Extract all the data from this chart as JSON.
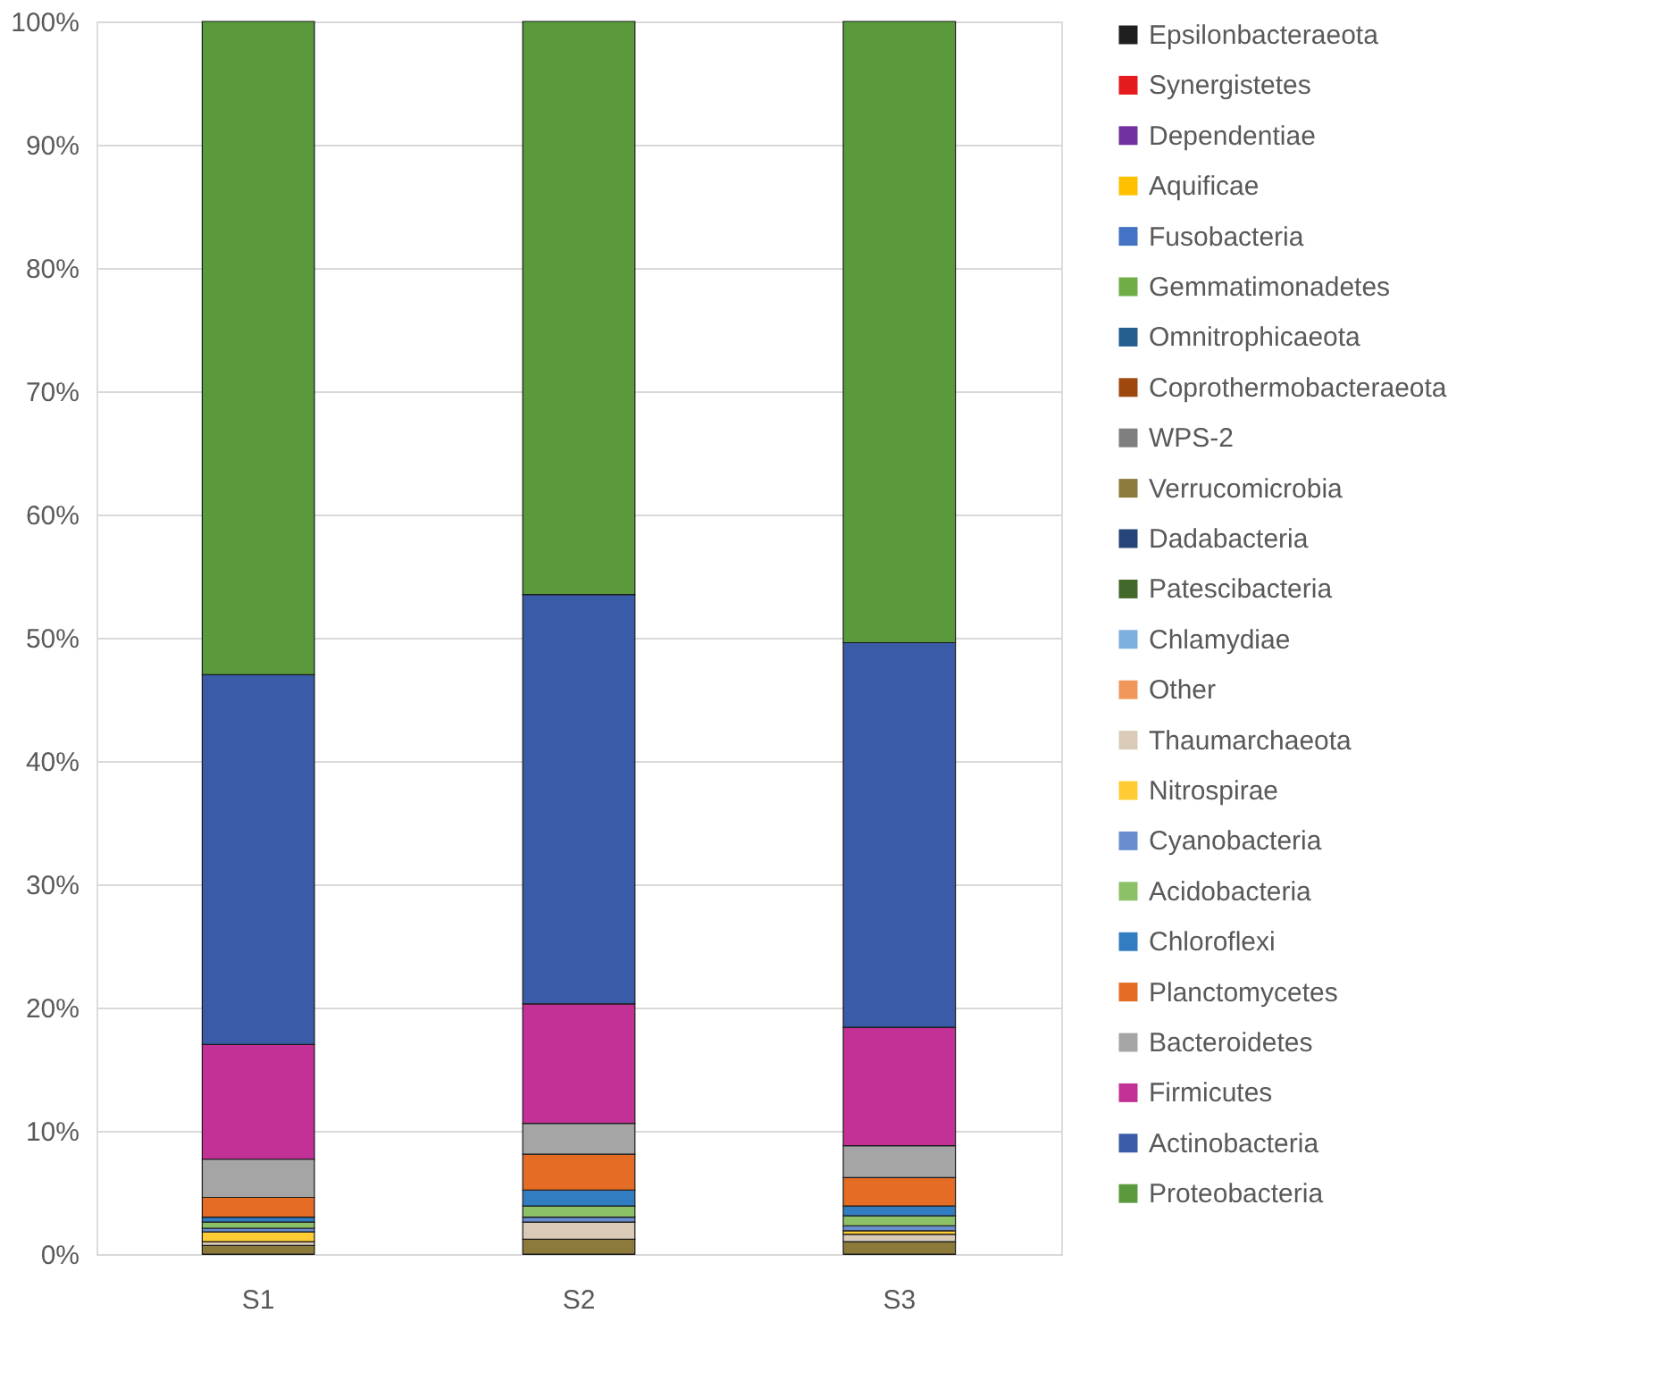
{
  "chart_data": {
    "type": "bar",
    "stacked": true,
    "categories": [
      "S1",
      "S2",
      "S3"
    ],
    "ylim": [
      0,
      100
    ],
    "yticks": [
      {
        "value": 0,
        "label": "0%"
      },
      {
        "value": 10,
        "label": "10%"
      },
      {
        "value": 20,
        "label": "20%"
      },
      {
        "value": 30,
        "label": "30%"
      },
      {
        "value": 40,
        "label": "40%"
      },
      {
        "value": 50,
        "label": "50%"
      },
      {
        "value": 60,
        "label": "60%"
      },
      {
        "value": 70,
        "label": "70%"
      },
      {
        "value": 80,
        "label": "80%"
      },
      {
        "value": 90,
        "label": "90%"
      },
      {
        "value": 100,
        "label": "100%"
      }
    ],
    "grid": "y",
    "legend": "right",
    "series": [
      {
        "name": "Epsilonbacteraeota",
        "color": "#1f1f1f",
        "values": [
          0,
          0,
          0
        ]
      },
      {
        "name": "Synergistetes",
        "color": "#e41a1c",
        "values": [
          0,
          0,
          0
        ]
      },
      {
        "name": "Dependentiae",
        "color": "#7030a0",
        "values": [
          0,
          0,
          0
        ]
      },
      {
        "name": "Aquificae",
        "color": "#ffc000",
        "values": [
          0,
          0,
          0
        ]
      },
      {
        "name": "Fusobacteria",
        "color": "#4472c4",
        "values": [
          0,
          0,
          0
        ]
      },
      {
        "name": "Gemmatimonadetes",
        "color": "#70ad47",
        "values": [
          0,
          0,
          0
        ]
      },
      {
        "name": "Omnitrophicaeota",
        "color": "#255e91",
        "values": [
          0,
          0,
          0
        ]
      },
      {
        "name": "Coprothermobacteraeota",
        "color": "#9e480e",
        "values": [
          0,
          0,
          0
        ]
      },
      {
        "name": "WPS-2",
        "color": "#7f7f7f",
        "values": [
          0,
          0,
          0
        ]
      },
      {
        "name": "Verrucomicrobia",
        "color": "#8c7a3a",
        "values": [
          0.7,
          1.2,
          1.0
        ]
      },
      {
        "name": "Dadabacteria",
        "color": "#264478",
        "values": [
          0,
          0,
          0
        ]
      },
      {
        "name": "Patescibacteria",
        "color": "#43682b",
        "values": [
          0,
          0,
          0
        ]
      },
      {
        "name": "Chlamydiae",
        "color": "#7cafdd",
        "values": [
          0,
          0,
          0
        ]
      },
      {
        "name": "Other",
        "color": "#f1975a",
        "values": [
          0,
          0,
          0
        ]
      },
      {
        "name": "Thaumarchaeota",
        "color": "#d9cbb8",
        "values": [
          0.3,
          1.4,
          0.6
        ]
      },
      {
        "name": "Nitrospirae",
        "color": "#ffcd33",
        "values": [
          0.8,
          0,
          0.3
        ]
      },
      {
        "name": "Cyanobacteria",
        "color": "#698ed0",
        "values": [
          0.3,
          0.4,
          0.4
        ]
      },
      {
        "name": "Acidobacteria",
        "color": "#8cc168",
        "values": [
          0.5,
          0.9,
          0.8
        ]
      },
      {
        "name": "Chloroflexi",
        "color": "#327dc2",
        "values": [
          0.4,
          1.3,
          0.8
        ]
      },
      {
        "name": "Planctomycetes",
        "color": "#e46c24",
        "values": [
          1.6,
          2.9,
          2.3
        ]
      },
      {
        "name": "Bacteroidetes",
        "color": "#a5a5a5",
        "values": [
          3.1,
          2.5,
          2.6
        ]
      },
      {
        "name": "Firmicutes",
        "color": "#c43196",
        "values": [
          9.3,
          9.7,
          9.6
        ]
      },
      {
        "name": "Actinobacteria",
        "color": "#3a5ba7",
        "values": [
          30,
          33.2,
          31.2
        ]
      },
      {
        "name": "Proteobacteria",
        "color": "#5b9a3c",
        "values": [
          53,
          46.5,
          50.4
        ]
      }
    ]
  }
}
